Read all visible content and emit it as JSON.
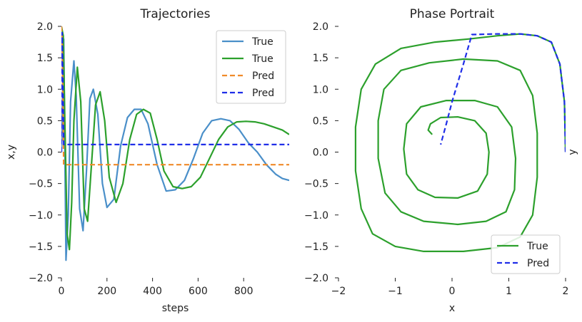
{
  "chart_data": [
    {
      "type": "line",
      "title": "Trajectories",
      "xlabel": "steps",
      "ylabel": "x,y",
      "xlim": [
        0,
        1000
      ],
      "ylim": [
        -2.0,
        2.0
      ],
      "xticks": [
        "0",
        "200",
        "400",
        "600",
        "800"
      ],
      "yticks": [
        "−2.0",
        "−1.5",
        "−1.0",
        "−0.5",
        "0.0",
        "0.5",
        "1.0",
        "1.5",
        "2.0"
      ],
      "grid": false,
      "legend_position": "top-right",
      "series": [
        {
          "name": "True",
          "color": "#4a8fc9",
          "style": "solid",
          "x": [
            0,
            10,
            20,
            30,
            40,
            55,
            65,
            80,
            95,
            110,
            125,
            140,
            160,
            180,
            200,
            230,
            260,
            290,
            320,
            350,
            380,
            420,
            460,
            500,
            540,
            580,
            620,
            660,
            700,
            740,
            780,
            820,
            860,
            900,
            940,
            970,
            1000
          ],
          "y": [
            0,
            1.8,
            -1.72,
            -1.0,
            0.8,
            1.45,
            0.9,
            -0.9,
            -1.25,
            -0.3,
            0.85,
            1.0,
            0.6,
            -0.5,
            -0.88,
            -0.75,
            0.1,
            0.55,
            0.68,
            0.68,
            0.45,
            -0.2,
            -0.62,
            -0.6,
            -0.45,
            -0.1,
            0.3,
            0.5,
            0.53,
            0.5,
            0.36,
            0.15,
            0.0,
            -0.2,
            -0.35,
            -0.42,
            -0.45
          ]
        },
        {
          "name": "True",
          "color": "#2ca02c",
          "style": "solid",
          "x": [
            0,
            8,
            15,
            25,
            35,
            45,
            55,
            70,
            85,
            100,
            115,
            130,
            150,
            170,
            190,
            210,
            240,
            270,
            300,
            330,
            360,
            390,
            420,
            450,
            490,
            530,
            570,
            610,
            650,
            690,
            730,
            770,
            810,
            850,
            890,
            930,
            970,
            1000
          ],
          "y": [
            2.0,
            1.85,
            0.5,
            -1.3,
            -1.55,
            -0.8,
            0.5,
            1.35,
            0.8,
            -0.9,
            -1.1,
            -0.3,
            0.75,
            0.96,
            0.5,
            -0.4,
            -0.8,
            -0.5,
            0.2,
            0.6,
            0.68,
            0.62,
            0.2,
            -0.3,
            -0.55,
            -0.58,
            -0.55,
            -0.4,
            -0.1,
            0.2,
            0.4,
            0.48,
            0.49,
            0.48,
            0.45,
            0.4,
            0.35,
            0.28
          ]
        },
        {
          "name": "Pred",
          "color": "#f08a2a",
          "style": "dashed",
          "x": [
            0,
            3,
            10,
            20,
            1000
          ],
          "y": [
            2.0,
            1.8,
            -0.2,
            -0.2,
            -0.2
          ]
        },
        {
          "name": "Pred",
          "color": "#1f2ee8",
          "style": "dashed",
          "x": [
            0,
            3,
            10,
            20,
            1000
          ],
          "y": [
            0.0,
            1.9,
            0.12,
            0.12,
            0.12
          ]
        }
      ]
    },
    {
      "type": "line",
      "title": "Phase Portrait",
      "xlabel": "x",
      "ylabel": "y",
      "xlim": [
        -2.0,
        2.0
      ],
      "ylim": [
        -2.0,
        2.0
      ],
      "xticks": [
        "−2",
        "−1",
        "0",
        "1",
        "2"
      ],
      "yticks": [
        "−2.0",
        "−1.5",
        "−1.0",
        "−0.5",
        "0.0",
        "0.5",
        "1.0",
        "1.5",
        "2.0"
      ],
      "grid": false,
      "legend_position": "bottom-right",
      "series": [
        {
          "name": "True",
          "color": "#2ca02c",
          "style": "solid",
          "x": [
            2.0,
            1.98,
            1.9,
            1.75,
            1.5,
            1.2,
            0.8,
            0.3,
            -0.3,
            -0.9,
            -1.35,
            -1.6,
            -1.7,
            -1.7,
            -1.6,
            -1.4,
            -1.0,
            -0.5,
            0.2,
            0.8,
            1.2,
            1.42,
            1.5,
            1.5,
            1.42,
            1.2,
            0.8,
            0.2,
            -0.4,
            -0.9,
            -1.2,
            -1.3,
            -1.3,
            -1.18,
            -0.9,
            -0.5,
            0.1,
            0.6,
            0.95,
            1.1,
            1.12,
            1.05,
            0.8,
            0.4,
            -0.1,
            -0.55,
            -0.8,
            -0.85,
            -0.8,
            -0.6,
            -0.3,
            0.1,
            0.45,
            0.62,
            0.65,
            0.6,
            0.4,
            0.1,
            -0.2,
            -0.38,
            -0.42,
            -0.35
          ],
          "y": [
            0.0,
            0.8,
            1.4,
            1.75,
            1.85,
            1.88,
            1.85,
            1.8,
            1.75,
            1.65,
            1.4,
            1.0,
            0.4,
            -0.3,
            -0.9,
            -1.3,
            -1.5,
            -1.58,
            -1.58,
            -1.52,
            -1.35,
            -1.0,
            -0.4,
            0.3,
            0.9,
            1.3,
            1.45,
            1.48,
            1.42,
            1.3,
            1.0,
            0.5,
            -0.1,
            -0.65,
            -0.95,
            -1.1,
            -1.15,
            -1.1,
            -0.95,
            -0.6,
            -0.1,
            0.4,
            0.72,
            0.82,
            0.82,
            0.72,
            0.45,
            0.05,
            -0.35,
            -0.6,
            -0.72,
            -0.73,
            -0.62,
            -0.35,
            0.0,
            0.3,
            0.5,
            0.56,
            0.55,
            0.45,
            0.35,
            0.28
          ]
        },
        {
          "name": "Pred",
          "color": "#1f2ee8",
          "style": "dashed",
          "x": [
            2.0,
            1.98,
            1.9,
            1.75,
            1.5,
            1.2,
            0.8,
            0.35,
            0.2,
            0.0,
            -0.1,
            -0.2
          ],
          "y": [
            0.0,
            0.8,
            1.4,
            1.75,
            1.85,
            1.88,
            1.88,
            1.87,
            1.4,
            0.8,
            0.45,
            0.12
          ]
        }
      ]
    }
  ]
}
